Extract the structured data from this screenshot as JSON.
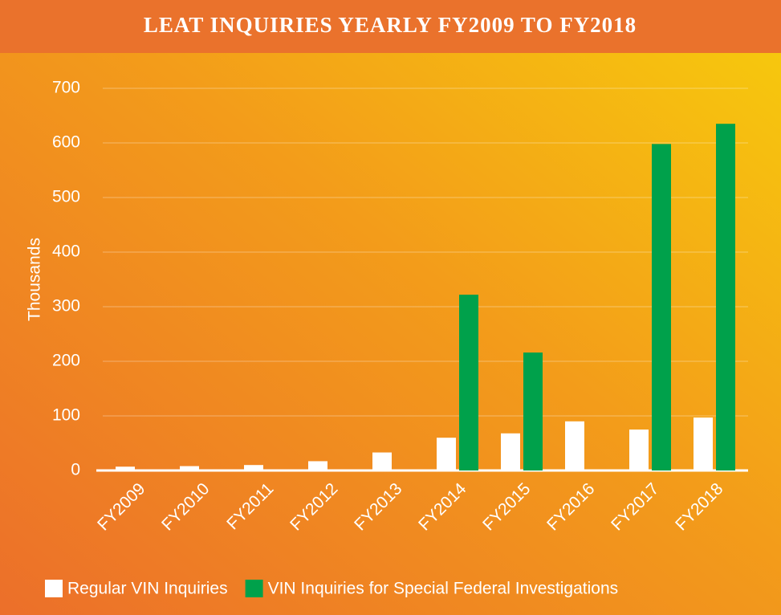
{
  "chart_data": {
    "type": "bar",
    "title": "LEAT INQUIRIES YEARLY FY2009 TO FY2018",
    "y_label": "Thousands",
    "categories": [
      "FY2009",
      "FY2010",
      "FY2011",
      "FY2012",
      "FY2013",
      "FY2014",
      "FY2015",
      "FY2016",
      "FY2017",
      "FY2018"
    ],
    "series": [
      {
        "name": "Regular VIN Inquiries",
        "color": "#ffffff",
        "values": [
          7,
          8,
          10,
          17,
          33,
          60,
          68,
          90,
          75,
          97
        ]
      },
      {
        "name": "VIN Inquiries for Special Federal Investigations",
        "color": "#00a14b",
        "values": [
          null,
          null,
          null,
          null,
          null,
          322,
          216,
          null,
          598,
          635
        ]
      }
    ],
    "ylim": [
      0,
      700
    ],
    "yticks": [
      0,
      100,
      200,
      300,
      400,
      500,
      600,
      700
    ],
    "grid": true,
    "legend": "bottom"
  }
}
